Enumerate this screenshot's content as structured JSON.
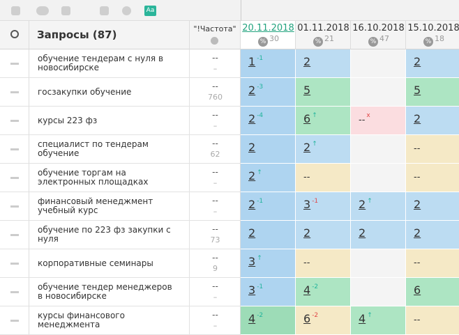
{
  "toolbar": {
    "icon_label": "Aa"
  },
  "header": {
    "query_title": "Запросы (87)",
    "freq_title": "\"!Частота\"",
    "percent_icon": "%",
    "dates": [
      {
        "label": "20.11.2018",
        "percent": 30,
        "active": true
      },
      {
        "label": "01.11.2018",
        "percent": 21
      },
      {
        "label": "16.10.2018",
        "percent": 47
      },
      {
        "label": "15.10.2018",
        "percent": 18
      }
    ]
  },
  "palette": {
    "top3": "#bcdcf2",
    "top3_active": "#aed4f0",
    "top10": "#ade5c3",
    "top10_active": "#9ddcb7",
    "none": "#f5e9c6",
    "lost": "#fbdde0",
    "empty": "#f4f4f4",
    "up": "#21b39b",
    "down": "#e04646"
  },
  "rows": [
    {
      "query": "обучение тендерам с нуля в новосибирске",
      "freq": [
        "--",
        "–"
      ],
      "cells": [
        {
          "value": "1",
          "change": "-1",
          "trend": "up",
          "kind": "top3"
        },
        {
          "value": "2",
          "kind": "top3"
        },
        {
          "kind": "empty"
        },
        {
          "value": "2",
          "kind": "top3"
        }
      ]
    },
    {
      "query": "госзакупки обучение",
      "freq": [
        "--",
        "760"
      ],
      "cells": [
        {
          "value": "2",
          "change": "-3",
          "trend": "up",
          "kind": "top3"
        },
        {
          "value": "5",
          "kind": "top10"
        },
        {
          "kind": "empty"
        },
        {
          "value": "5",
          "kind": "top10"
        }
      ]
    },
    {
      "query": "курсы 223 фз",
      "freq": [
        "--",
        "–"
      ],
      "cells": [
        {
          "value": "2",
          "change": "-4",
          "trend": "up",
          "kind": "top3"
        },
        {
          "value": "6",
          "change": "↑",
          "trend": "up",
          "kind": "top10"
        },
        {
          "value": "--",
          "change": "x",
          "trend": "down",
          "kind": "lost"
        },
        {
          "value": "2",
          "kind": "top3"
        }
      ]
    },
    {
      "query": "специалист по тендерам обучение",
      "freq": [
        "--",
        "62"
      ],
      "cells": [
        {
          "value": "2",
          "kind": "top3"
        },
        {
          "value": "2",
          "change": "↑",
          "trend": "up",
          "kind": "top3"
        },
        {
          "kind": "empty"
        },
        {
          "value": "--",
          "kind": "none"
        }
      ]
    },
    {
      "query": "обучение торгам на электронных площадках",
      "freq": [
        "--",
        "–"
      ],
      "cells": [
        {
          "value": "2",
          "change": "↑",
          "trend": "up",
          "kind": "top3"
        },
        {
          "value": "--",
          "kind": "none"
        },
        {
          "kind": "empty"
        },
        {
          "value": "--",
          "kind": "none"
        }
      ]
    },
    {
      "query": "финансовый менеджмент учебный курс",
      "freq": [
        "--",
        "–"
      ],
      "cells": [
        {
          "value": "2",
          "change": "-1",
          "trend": "up",
          "kind": "top3"
        },
        {
          "value": "3",
          "change": "-1",
          "trend": "down",
          "kind": "top3"
        },
        {
          "value": "2",
          "change": "↑",
          "trend": "up",
          "kind": "top3"
        },
        {
          "value": "2",
          "kind": "top3"
        }
      ]
    },
    {
      "query": "обучение по 223 фз закупки с нуля",
      "freq": [
        "--",
        "73"
      ],
      "cells": [
        {
          "value": "2",
          "kind": "top3"
        },
        {
          "value": "2",
          "kind": "top3"
        },
        {
          "value": "2",
          "kind": "top3"
        },
        {
          "value": "2",
          "kind": "top3"
        }
      ]
    },
    {
      "query": "корпоративные семинары",
      "freq": [
        "--",
        "9"
      ],
      "cells": [
        {
          "value": "3",
          "change": "↑",
          "trend": "up",
          "kind": "top3"
        },
        {
          "value": "--",
          "kind": "none"
        },
        {
          "kind": "empty"
        },
        {
          "value": "--",
          "kind": "none"
        }
      ]
    },
    {
      "query": "обучение тендер менеджеров в новосибирске",
      "freq": [
        "--",
        "–"
      ],
      "cells": [
        {
          "value": "3",
          "change": "-1",
          "trend": "up",
          "kind": "top3"
        },
        {
          "value": "4",
          "change": "-2",
          "trend": "up",
          "kind": "top10"
        },
        {
          "kind": "empty"
        },
        {
          "value": "6",
          "kind": "top10"
        }
      ]
    },
    {
      "query": "курсы финансового менеджмента",
      "freq": [
        "--",
        "–"
      ],
      "cells": [
        {
          "value": "4",
          "change": "-2",
          "trend": "up",
          "kind": "top10"
        },
        {
          "value": "6",
          "change": "-2",
          "trend": "down",
          "kind": "none"
        },
        {
          "value": "4",
          "change": "↑",
          "trend": "up",
          "kind": "top10"
        },
        {
          "value": "--",
          "kind": "none"
        }
      ]
    }
  ]
}
